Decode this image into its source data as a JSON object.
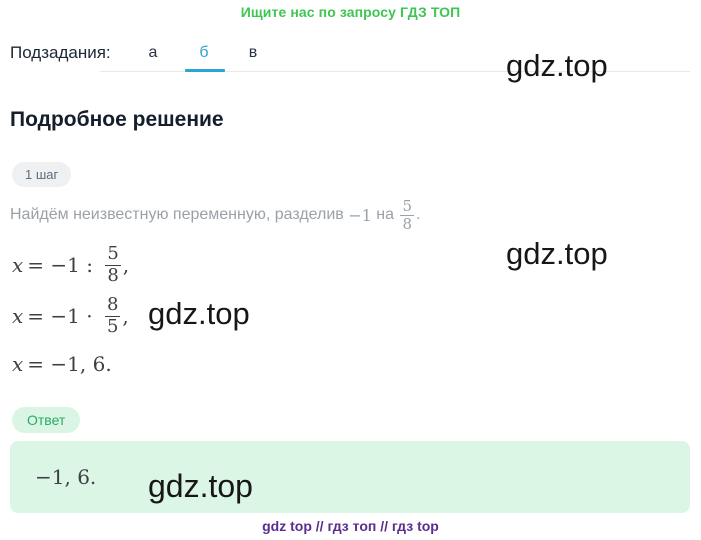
{
  "promo": {
    "text": "Ищите нас по запросу ГДЗ ТОП"
  },
  "subtasks": {
    "label": "Подзадания:",
    "tabs": [
      {
        "label": "а",
        "active": false
      },
      {
        "label": "б",
        "active": true
      },
      {
        "label": "в",
        "active": false
      }
    ],
    "active_tab": "б"
  },
  "watermark": {
    "text": "gdz.top"
  },
  "solution": {
    "title": "Подробное решение",
    "step_badge": "1 шаг",
    "step_description": {
      "text_before": "Найдём неизвестную переменную, разделив ",
      "inline_math": "−1",
      "text_mid": " на ",
      "frac_num": "5",
      "frac_den": "8",
      "suffix": "."
    },
    "equations": [
      {
        "variable": "x",
        "operator": "= −1 : ",
        "frac_num": "5",
        "frac_den": "8",
        "suffix": ","
      },
      {
        "variable": "x",
        "operator": "= −1 · ",
        "frac_num": "8",
        "frac_den": "5",
        "suffix": ","
      },
      {
        "variable": "x",
        "operator": "= −1, 6.",
        "frac_num": "",
        "frac_den": "",
        "suffix": ""
      }
    ]
  },
  "answer": {
    "badge": "Ответ",
    "value": "−1, 6."
  },
  "footer": {
    "text": "gdz top  //  гдз топ  //  гдз top"
  },
  "colors": {
    "promo_green": "#3fc552",
    "tab_active_blue": "#2ba4d8",
    "answer_badge_green": "#2aa868",
    "answer_box_bg": "#dcf6e6",
    "step_badge_bg": "#eef0f1",
    "footer_purple": "#5c2d91",
    "muted_text": "#9ba1a8",
    "watermark_black": "#171717"
  }
}
